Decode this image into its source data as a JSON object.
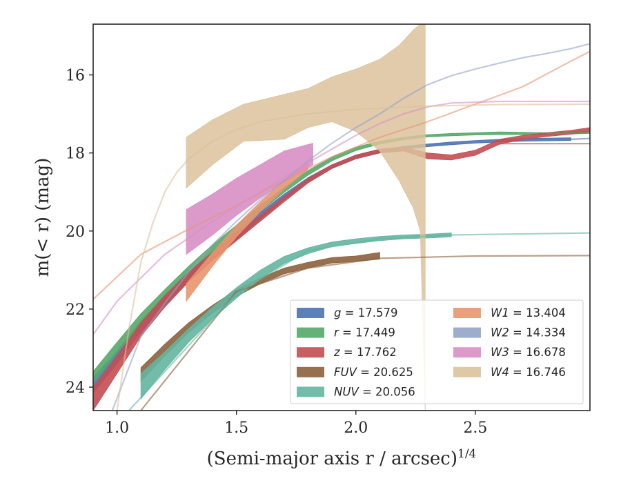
{
  "chart_data": {
    "type": "area",
    "title": "",
    "xlabel": "(Semi-major axis r / arcsec)",
    "xlabel_exponent": "1/4",
    "ylabel": "m(< r) (mag)",
    "xlim": [
      0.9,
      2.98
    ],
    "ylim": [
      24.6,
      14.7
    ],
    "y_inverted": true,
    "grid": false,
    "legend_placement": "lower-right",
    "x_ticks": [
      "1.0",
      "1.5",
      "2.0",
      "2.5"
    ],
    "x_tick_values": [
      1.0,
      1.5,
      2.0,
      2.5
    ],
    "y_ticks": [
      "16",
      "18",
      "20",
      "22",
      "24"
    ],
    "y_tick_values": [
      16,
      18,
      20,
      22,
      24
    ],
    "series": [
      {
        "name": "g",
        "legend": "g = 17.579",
        "color": "#4c72b0",
        "band": [
          [
            0.9,
            23.75,
            24.15
          ],
          [
            1.0,
            23.08,
            23.4
          ],
          [
            1.1,
            22.3,
            22.58
          ],
          [
            1.2,
            21.65,
            21.9
          ],
          [
            1.3,
            21.05,
            21.28
          ],
          [
            1.4,
            20.52,
            20.73
          ],
          [
            1.5,
            20.02,
            20.22
          ],
          [
            1.6,
            19.52,
            19.7
          ],
          [
            1.7,
            19.05,
            19.2
          ],
          [
            1.8,
            18.63,
            18.75
          ],
          [
            1.9,
            18.3,
            18.4
          ],
          [
            2.0,
            18.06,
            18.15
          ],
          [
            2.1,
            17.92,
            18.0
          ],
          [
            2.2,
            17.83,
            17.9
          ],
          [
            2.3,
            17.77,
            17.84
          ],
          [
            2.4,
            17.72,
            17.79
          ],
          [
            2.5,
            17.68,
            17.75
          ],
          [
            2.6,
            17.65,
            17.72
          ],
          [
            2.7,
            17.63,
            17.7
          ],
          [
            2.8,
            17.62,
            17.69
          ],
          [
            2.9,
            17.61,
            17.68
          ]
        ],
        "model": [
          [
            2.9,
            17.65
          ],
          [
            2.98,
            17.63
          ]
        ]
      },
      {
        "name": "r",
        "legend": "r = 17.449",
        "color": "#55a868",
        "band": [
          [
            0.9,
            23.6,
            23.9
          ],
          [
            1.0,
            22.85,
            23.12
          ],
          [
            1.1,
            22.12,
            22.37
          ],
          [
            1.2,
            21.5,
            21.72
          ],
          [
            1.3,
            20.9,
            21.1
          ],
          [
            1.4,
            20.35,
            20.53
          ],
          [
            1.5,
            19.85,
            20.02
          ],
          [
            1.6,
            19.35,
            19.5
          ],
          [
            1.7,
            18.88,
            19.01
          ],
          [
            1.8,
            18.45,
            18.57
          ],
          [
            1.9,
            18.1,
            18.2
          ],
          [
            2.0,
            17.85,
            17.94
          ],
          [
            2.1,
            17.7,
            17.77
          ],
          [
            2.2,
            17.6,
            17.66
          ],
          [
            2.3,
            17.53,
            17.59
          ],
          [
            2.4,
            17.5,
            17.56
          ],
          [
            2.5,
            17.48,
            17.54
          ],
          [
            2.6,
            17.46,
            17.53
          ],
          [
            2.7,
            17.47,
            17.53
          ],
          [
            2.8,
            17.48,
            17.54
          ],
          [
            2.98,
            17.44,
            17.5
          ]
        ],
        "model": [
          [
            2.8,
            17.5
          ],
          [
            2.98,
            17.48
          ]
        ]
      },
      {
        "name": "z",
        "legend": "z = 17.762",
        "color": "#c44e52",
        "band": [
          [
            0.9,
            24.0,
            24.6
          ],
          [
            1.0,
            23.2,
            23.65
          ],
          [
            1.1,
            22.35,
            22.7
          ],
          [
            1.2,
            21.65,
            21.95
          ],
          [
            1.3,
            21.05,
            21.3
          ],
          [
            1.4,
            20.55,
            20.75
          ],
          [
            1.5,
            20.08,
            20.25
          ],
          [
            1.6,
            19.6,
            19.75
          ],
          [
            1.7,
            19.12,
            19.25
          ],
          [
            1.8,
            18.65,
            18.77
          ],
          [
            1.9,
            18.3,
            18.4
          ],
          [
            2.0,
            18.05,
            18.15
          ],
          [
            2.1,
            17.9,
            18.0
          ],
          [
            2.2,
            17.85,
            17.95
          ],
          [
            2.3,
            18.0,
            18.15
          ],
          [
            2.4,
            18.05,
            18.18
          ],
          [
            2.5,
            17.93,
            18.06
          ],
          [
            2.6,
            17.65,
            17.78
          ],
          [
            2.7,
            17.55,
            17.65
          ],
          [
            2.8,
            17.48,
            17.58
          ],
          [
            2.9,
            17.42,
            17.52
          ],
          [
            2.98,
            17.35,
            17.45
          ]
        ],
        "model": [
          [
            2.6,
            17.76
          ],
          [
            2.98,
            17.76
          ]
        ]
      },
      {
        "name": "FUV",
        "legend": "FUV = 20.625",
        "color": "#8c613c",
        "band": [
          [
            1.1,
            23.5,
            23.85
          ],
          [
            1.2,
            22.9,
            23.2
          ],
          [
            1.3,
            22.35,
            22.6
          ],
          [
            1.4,
            21.9,
            22.1
          ],
          [
            1.5,
            21.5,
            21.68
          ],
          [
            1.6,
            21.2,
            21.35
          ],
          [
            1.7,
            20.95,
            21.1
          ],
          [
            1.8,
            20.8,
            20.95
          ],
          [
            1.9,
            20.68,
            20.82
          ],
          [
            2.0,
            20.64,
            20.78
          ],
          [
            2.1,
            20.55,
            20.72
          ]
        ],
        "model": [
          [
            1.1,
            24.6
          ],
          [
            1.5,
            21.55
          ],
          [
            1.8,
            20.95
          ],
          [
            2.1,
            20.7
          ],
          [
            2.5,
            20.64
          ],
          [
            2.98,
            20.63
          ]
        ]
      },
      {
        "name": "NUV",
        "legend": "NUV = 20.056",
        "color": "#64b5a0",
        "band": [
          [
            1.1,
            23.65,
            24.3
          ],
          [
            1.2,
            23.1,
            23.55
          ],
          [
            1.3,
            22.5,
            22.85
          ],
          [
            1.4,
            21.95,
            22.25
          ],
          [
            1.5,
            21.45,
            21.72
          ],
          [
            1.6,
            21.0,
            21.22
          ],
          [
            1.7,
            20.65,
            20.83
          ],
          [
            1.8,
            20.43,
            20.58
          ],
          [
            1.9,
            20.28,
            20.4
          ],
          [
            2.0,
            20.2,
            20.32
          ],
          [
            2.1,
            20.14,
            20.25
          ],
          [
            2.2,
            20.1,
            20.2
          ],
          [
            2.3,
            20.08,
            20.18
          ],
          [
            2.4,
            20.05,
            20.15
          ]
        ],
        "model": [
          [
            1.05,
            24.6
          ],
          [
            1.5,
            21.6
          ],
          [
            1.8,
            20.5
          ],
          [
            2.1,
            20.2
          ],
          [
            2.4,
            20.1
          ],
          [
            2.98,
            20.05
          ]
        ]
      },
      {
        "name": "W1",
        "legend": "W1 = 13.404",
        "color": "#e8956f",
        "band": [
          [
            1.29,
            21.35,
            21.8
          ],
          [
            1.4,
            20.55,
            20.9
          ],
          [
            1.5,
            19.85,
            20.15
          ],
          [
            1.6,
            19.25,
            19.5
          ],
          [
            1.7,
            18.7,
            18.92
          ],
          [
            1.8,
            18.25,
            18.42
          ]
        ],
        "model": [
          [
            0.9,
            21.75
          ],
          [
            1.1,
            20.6
          ],
          [
            1.3,
            19.95
          ],
          [
            1.5,
            19.35
          ],
          [
            1.7,
            18.7
          ],
          [
            1.9,
            18.1
          ],
          [
            2.1,
            17.6
          ],
          [
            2.3,
            17.2
          ],
          [
            2.5,
            16.75
          ],
          [
            2.7,
            16.3
          ],
          [
            2.9,
            15.65
          ],
          [
            2.98,
            15.4
          ]
        ]
      },
      {
        "name": "W2",
        "legend": "W2 = 14.334",
        "color": "#93a3c9",
        "band": [],
        "model": [
          [
            0.98,
            24.6
          ],
          [
            1.1,
            22.7
          ],
          [
            1.2,
            21.85
          ],
          [
            1.3,
            21.05
          ],
          [
            1.4,
            20.35
          ],
          [
            1.5,
            19.75
          ],
          [
            1.6,
            19.2
          ],
          [
            1.7,
            18.7
          ],
          [
            1.8,
            18.2
          ],
          [
            1.9,
            17.75
          ],
          [
            2.0,
            17.35
          ],
          [
            2.1,
            17.0
          ],
          [
            2.2,
            16.6
          ],
          [
            2.3,
            16.25
          ],
          [
            2.4,
            16.02
          ],
          [
            2.5,
            15.85
          ],
          [
            2.6,
            15.7
          ],
          [
            2.7,
            15.56
          ],
          [
            2.8,
            15.45
          ],
          [
            2.9,
            15.33
          ],
          [
            2.98,
            15.2
          ]
        ]
      },
      {
        "name": "W3",
        "legend": "W3 = 16.678",
        "color": "#d88fc4",
        "band": [
          [
            1.29,
            19.45,
            20.6
          ],
          [
            1.4,
            19.05,
            20.1
          ],
          [
            1.5,
            18.65,
            19.6
          ],
          [
            1.6,
            18.3,
            19.15
          ],
          [
            1.7,
            17.95,
            18.75
          ],
          [
            1.82,
            17.75,
            18.3
          ]
        ],
        "model": [
          [
            0.9,
            22.65
          ],
          [
            1.0,
            21.8
          ],
          [
            1.2,
            20.6
          ],
          [
            1.4,
            19.75
          ],
          [
            1.6,
            19.0
          ],
          [
            1.8,
            18.25
          ],
          [
            1.9,
            17.9
          ],
          [
            2.0,
            17.55
          ],
          [
            2.1,
            17.25
          ],
          [
            2.2,
            17.0
          ],
          [
            2.3,
            16.82
          ],
          [
            2.4,
            16.72
          ],
          [
            2.6,
            16.68
          ],
          [
            2.98,
            16.68
          ]
        ]
      },
      {
        "name": "W4",
        "legend": "W4 = 16.746",
        "color": "#dcc29b",
        "band": [
          [
            1.29,
            17.6,
            18.9
          ],
          [
            1.4,
            17.15,
            18.3
          ],
          [
            1.53,
            16.75,
            17.7
          ],
          [
            1.7,
            16.5,
            17.65
          ],
          [
            1.8,
            16.35,
            17.35
          ],
          [
            1.9,
            16.05,
            17.2
          ],
          [
            2.0,
            15.85,
            17.45
          ],
          [
            2.1,
            15.6,
            17.95
          ],
          [
            2.18,
            15.25,
            18.7
          ],
          [
            2.24,
            14.85,
            19.4
          ],
          [
            2.27,
            14.7,
            20.0
          ],
          [
            2.29,
            14.7,
            24.6
          ]
        ],
        "model": [
          [
            1.0,
            24.6
          ],
          [
            1.05,
            22.5
          ],
          [
            1.1,
            20.8
          ],
          [
            1.15,
            19.8
          ],
          [
            1.2,
            19.0
          ],
          [
            1.25,
            18.5
          ],
          [
            1.3,
            18.15
          ],
          [
            1.4,
            17.7
          ],
          [
            1.5,
            17.4
          ],
          [
            1.6,
            17.2
          ],
          [
            1.8,
            17.0
          ],
          [
            2.0,
            16.88
          ],
          [
            2.3,
            16.8
          ],
          [
            2.6,
            16.76
          ],
          [
            2.98,
            16.75
          ]
        ]
      }
    ]
  }
}
